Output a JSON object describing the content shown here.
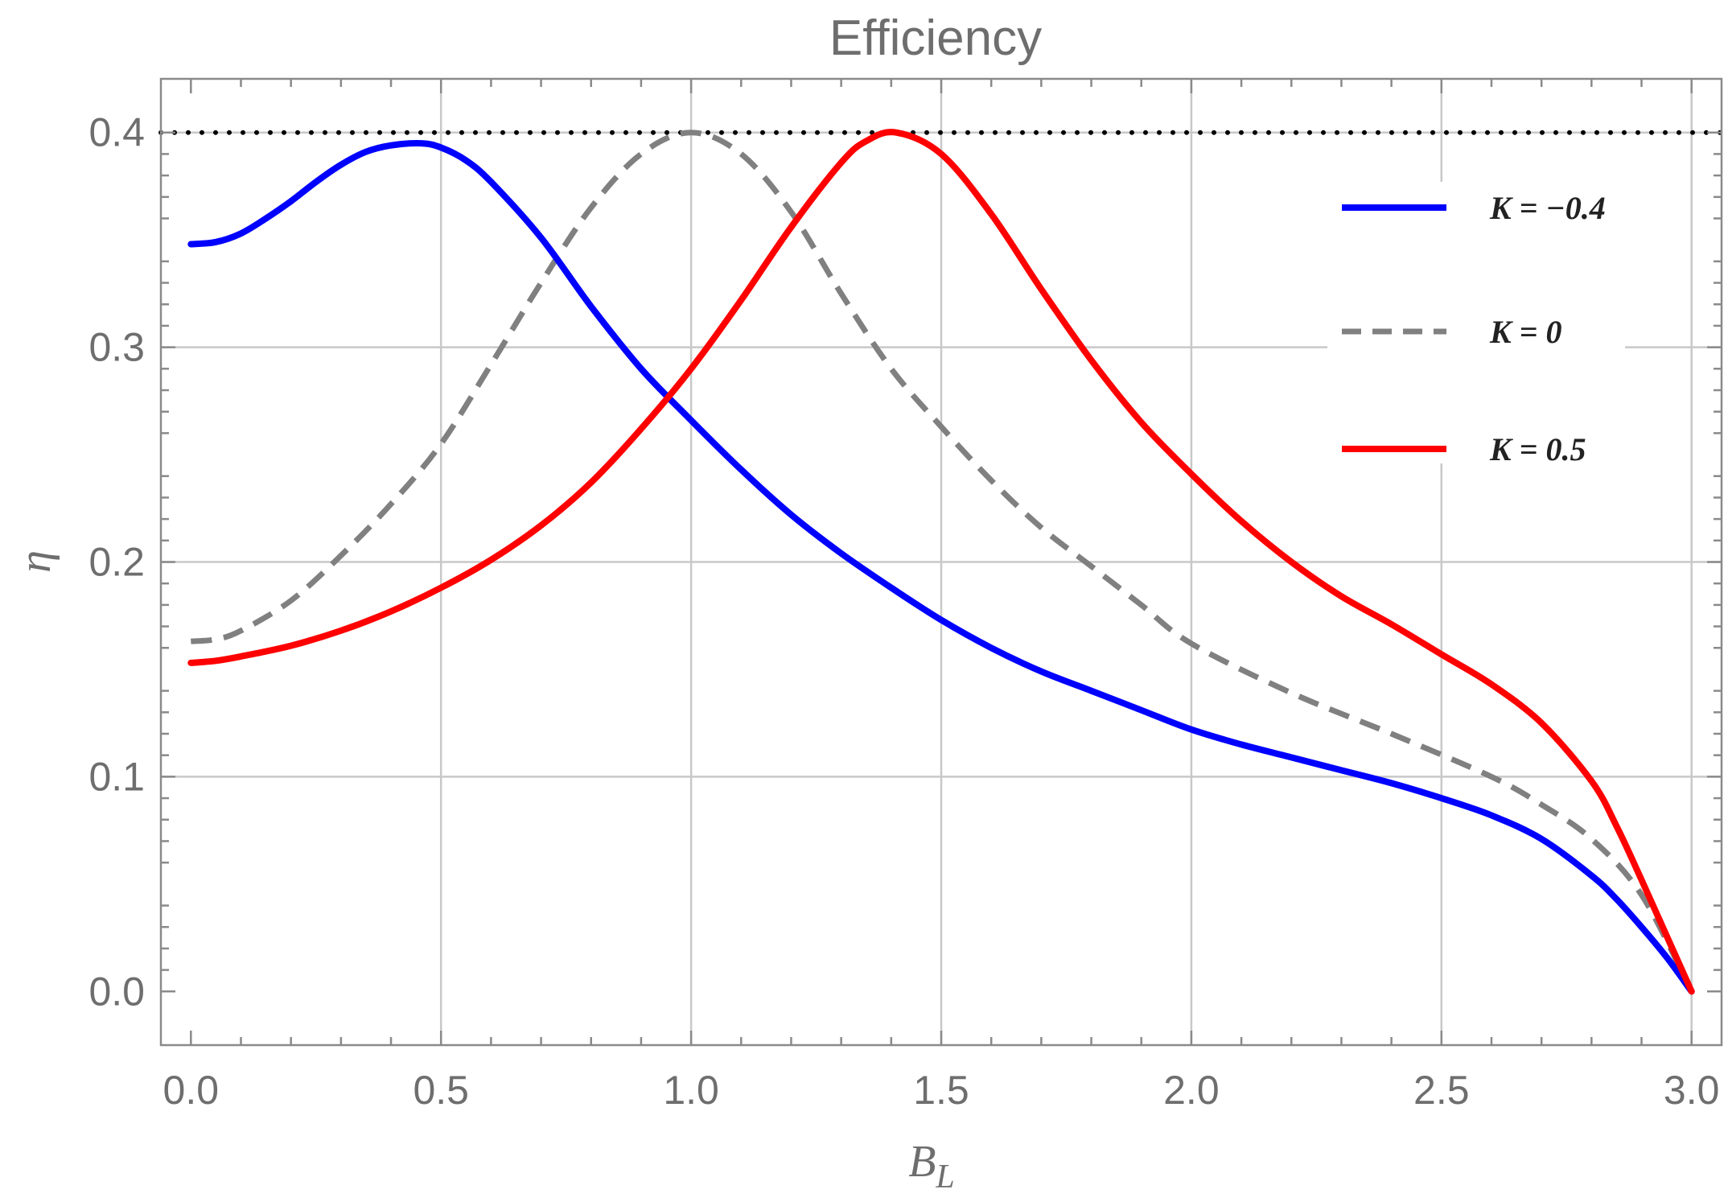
{
  "chart_data": {
    "type": "line",
    "title": "Efficiency",
    "xlabel": "B",
    "xlabel_sub": "L",
    "ylabel": "η",
    "xlim": [
      -0.06,
      3.06
    ],
    "ylim": [
      -0.025,
      0.425
    ],
    "xticks": [
      "0.0",
      "0.5",
      "1.0",
      "1.5",
      "2.0",
      "2.5",
      "3.0"
    ],
    "yticks": [
      "0.0",
      "0.1",
      "0.2",
      "0.3",
      "0.4"
    ],
    "grid": true,
    "legend_position": "top-right",
    "reference_line": {
      "y": 0.4,
      "style": "dotted",
      "color": "#000000"
    },
    "series": [
      {
        "name": "K = −0.4",
        "color": "#0000ff",
        "dash": "solid",
        "x": [
          0.0,
          0.05,
          0.1,
          0.15,
          0.2,
          0.25,
          0.3,
          0.35,
          0.4,
          0.46,
          0.5,
          0.55,
          0.6,
          0.7,
          0.8,
          0.9,
          1.0,
          1.1,
          1.2,
          1.3,
          1.4,
          1.5,
          1.6,
          1.7,
          1.8,
          1.9,
          2.0,
          2.1,
          2.2,
          2.3,
          2.4,
          2.5,
          2.6,
          2.7,
          2.8,
          2.85,
          2.9,
          2.95,
          3.0
        ],
        "y": [
          0.348,
          0.349,
          0.353,
          0.36,
          0.368,
          0.377,
          0.385,
          0.391,
          0.394,
          0.395,
          0.393,
          0.387,
          0.377,
          0.351,
          0.319,
          0.29,
          0.266,
          0.243,
          0.222,
          0.204,
          0.188,
          0.173,
          0.16,
          0.149,
          0.14,
          0.131,
          0.122,
          0.115,
          0.109,
          0.103,
          0.097,
          0.09,
          0.082,
          0.071,
          0.054,
          0.043,
          0.03,
          0.016,
          0.0
        ]
      },
      {
        "name": "K = 0",
        "color": "#808080",
        "dash": "dashed",
        "x": [
          0.0,
          0.05,
          0.1,
          0.2,
          0.3,
          0.4,
          0.5,
          0.6,
          0.7,
          0.8,
          0.9,
          1.0,
          1.1,
          1.2,
          1.3,
          1.4,
          1.5,
          1.6,
          1.7,
          1.8,
          1.9,
          2.0,
          2.2,
          2.4,
          2.6,
          2.7,
          2.8,
          2.9,
          3.0
        ],
        "y": [
          0.163,
          0.164,
          0.168,
          0.182,
          0.203,
          0.227,
          0.255,
          0.292,
          0.33,
          0.365,
          0.39,
          0.4,
          0.39,
          0.363,
          0.325,
          0.29,
          0.263,
          0.238,
          0.216,
          0.198,
          0.18,
          0.162,
          0.139,
          0.12,
          0.1,
          0.087,
          0.071,
          0.045,
          0.0
        ]
      },
      {
        "name": "K = 0.5",
        "color": "#ff0000",
        "dash": "solid",
        "x": [
          0.0,
          0.05,
          0.1,
          0.2,
          0.3,
          0.4,
          0.5,
          0.6,
          0.7,
          0.8,
          0.9,
          1.0,
          1.1,
          1.2,
          1.3,
          1.35,
          1.41,
          1.5,
          1.6,
          1.7,
          1.8,
          1.9,
          2.0,
          2.1,
          2.2,
          2.3,
          2.4,
          2.5,
          2.6,
          2.7,
          2.8,
          2.85,
          2.9,
          2.95,
          3.0
        ],
        "y": [
          0.153,
          0.154,
          0.156,
          0.161,
          0.168,
          0.177,
          0.188,
          0.201,
          0.217,
          0.237,
          0.262,
          0.29,
          0.322,
          0.356,
          0.386,
          0.396,
          0.4,
          0.39,
          0.362,
          0.327,
          0.294,
          0.265,
          0.241,
          0.219,
          0.2,
          0.184,
          0.171,
          0.157,
          0.143,
          0.125,
          0.098,
          0.077,
          0.052,
          0.026,
          0.0
        ]
      }
    ]
  }
}
